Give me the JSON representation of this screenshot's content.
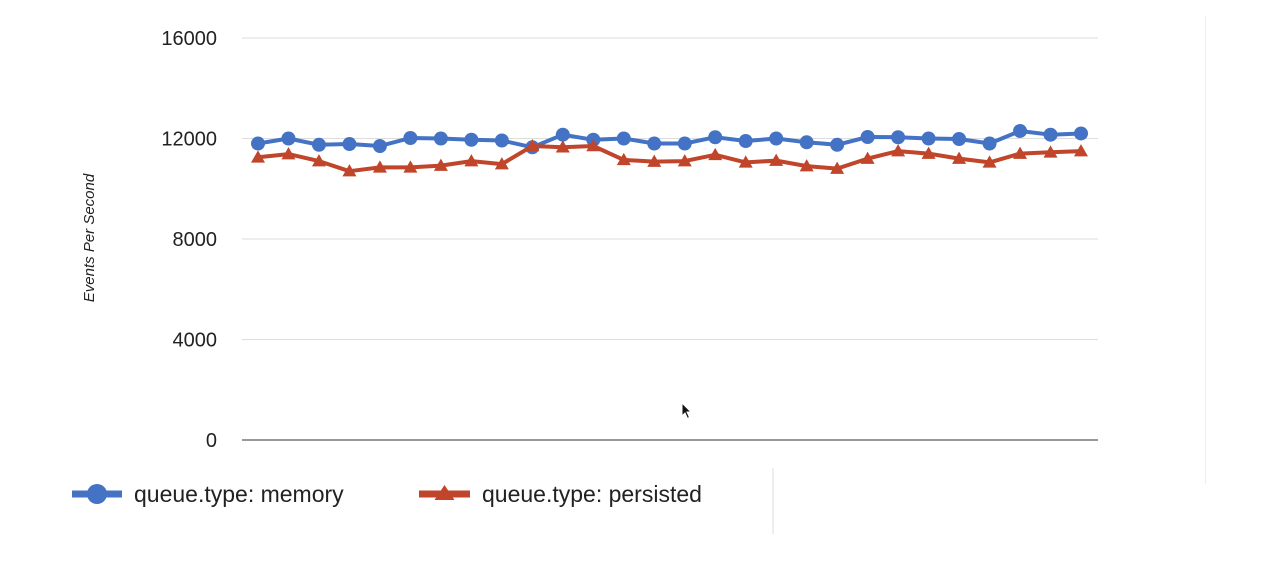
{
  "chart_data": {
    "type": "line",
    "title": "",
    "xlabel": "",
    "ylabel": "Events Per Second",
    "ylim": [
      0,
      16000
    ],
    "y_ticks": [
      0,
      4000,
      8000,
      12000,
      16000
    ],
    "grid": true,
    "legend_position": "bottom-left",
    "x": [
      1,
      2,
      3,
      4,
      5,
      6,
      7,
      8,
      9,
      10,
      11,
      12,
      13,
      14,
      15,
      16,
      17,
      18,
      19,
      20,
      21,
      22,
      23,
      24,
      25,
      26,
      27,
      28
    ],
    "series": [
      {
        "name": "queue.type: memory",
        "color": "#4472c4",
        "marker": "circle",
        "values": [
          11800,
          12000,
          11750,
          11780,
          11700,
          12020,
          12000,
          11950,
          11920,
          11650,
          12150,
          11950,
          12000,
          11800,
          11800,
          12050,
          11900,
          12000,
          11850,
          11750,
          12060,
          12050,
          12000,
          11980,
          11800,
          12300,
          12150,
          12200
        ]
      },
      {
        "name": "queue.type: persisted",
        "color": "#c0452a",
        "marker": "triangle",
        "values": [
          11250,
          11380,
          11100,
          10700,
          10850,
          10850,
          10920,
          11100,
          10980,
          11700,
          11650,
          11700,
          11150,
          11080,
          11100,
          11350,
          11050,
          11120,
          10900,
          10800,
          11200,
          11500,
          11400,
          11200,
          11050,
          11400,
          11450,
          11500
        ]
      }
    ]
  }
}
